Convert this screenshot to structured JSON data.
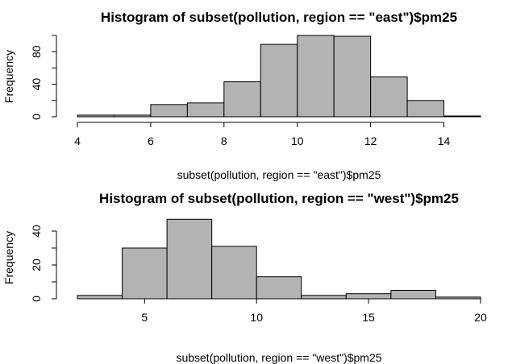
{
  "chart_data": [
    {
      "type": "bar",
      "title": "Histogram of subset(pollution, region == \"east\")$pm25",
      "xlabel": "subset(pollution, region == \"east\")$pm25",
      "ylabel": "Frequency",
      "bin_edges": [
        4,
        5,
        6,
        7,
        8,
        9,
        10,
        11,
        12,
        13,
        14,
        15
      ],
      "values": [
        2,
        2,
        15,
        17,
        43,
        89,
        100,
        99,
        49,
        20,
        1
      ],
      "xlim": [
        4,
        15
      ],
      "ylim": [
        0,
        100
      ],
      "xticks": [
        4,
        6,
        8,
        10,
        12,
        14
      ],
      "yticks": [
        0,
        40,
        80
      ],
      "yminor": [
        20,
        60,
        100
      ],
      "grid": false,
      "color": "#b3b3b3"
    },
    {
      "type": "bar",
      "title": "Histogram of subset(pollution, region == \"west\")$pm25",
      "xlabel": "subset(pollution, region == \"west\")$pm25",
      "ylabel": "Frequency",
      "bin_edges": [
        2,
        4,
        6,
        8,
        10,
        12,
        14,
        16,
        18,
        20
      ],
      "values": [
        2,
        30,
        47,
        31,
        13,
        2,
        3,
        5,
        1
      ],
      "xlim": [
        2,
        20
      ],
      "ylim": [
        0,
        47
      ],
      "xticks": [
        5,
        10,
        15,
        20
      ],
      "yticks": [
        0,
        20,
        40
      ],
      "yminor": [
        10,
        30
      ],
      "grid": false,
      "color": "#b3b3b3"
    }
  ]
}
